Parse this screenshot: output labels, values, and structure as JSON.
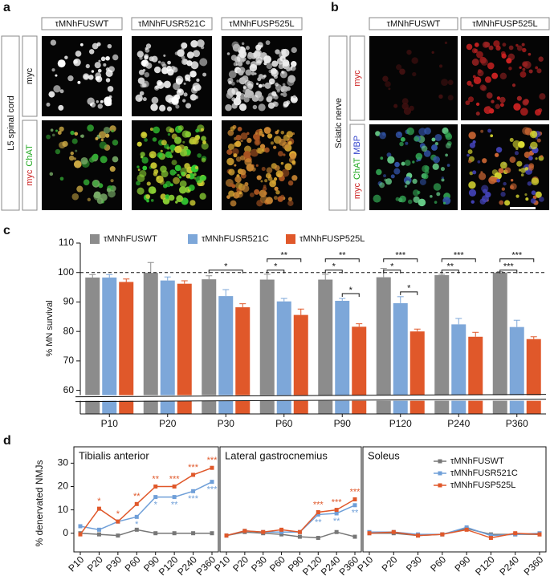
{
  "panel_labels": [
    "a",
    "b",
    "c",
    "d"
  ],
  "panel_a": {
    "columns": [
      "τMNhFUSWT",
      "τMNhFUSR521C",
      "τMNhFUSP525L"
    ],
    "row_title": "L5 spinal cord",
    "rows": [
      [
        {
          "text": "myc",
          "color": "#111111"
        }
      ],
      [
        {
          "text": "myc",
          "color": "#cc2222"
        },
        {
          "text": "ChAT",
          "color": "#22aa22"
        }
      ]
    ]
  },
  "panel_b": {
    "columns": [
      "τMNhFUSWT",
      "τMNhFUSP525L"
    ],
    "row_title": "Sciatic nerve",
    "rows": [
      [
        {
          "text": "myc",
          "color": "#cc2222"
        }
      ],
      [
        {
          "text": "myc",
          "color": "#cc2222"
        },
        {
          "text": "ChAT",
          "color": "#22aa22"
        },
        {
          "text": "MBP",
          "color": "#3344cc"
        }
      ]
    ]
  },
  "chart_data": [
    {
      "type": "bar",
      "ylabel": "% MN survival",
      "categories": [
        "P10",
        "P20",
        "P30",
        "P60",
        "P90",
        "P120",
        "P240",
        "P360"
      ],
      "series": [
        {
          "name": "τMNhFUSWT",
          "color": "#8c8c8c",
          "values": [
            98.3,
            99.9,
            97.7,
            97.6,
            97.6,
            98.4,
            99.1,
            100.0
          ],
          "errors": [
            1.0,
            3.5,
            1.2,
            1.8,
            1.8,
            3.0,
            0.3,
            0.3
          ]
        },
        {
          "name": "τMNhFUSR521C",
          "color": "#7da7d9",
          "values": [
            98.3,
            97.3,
            92.0,
            90.2,
            90.4,
            89.6,
            82.4,
            81.5
          ],
          "errors": [
            1.0,
            1.2,
            2.2,
            1.0,
            0.8,
            2.2,
            2.0,
            2.3
          ]
        },
        {
          "name": "τMNhFUSP525L",
          "color": "#e0582a",
          "values": [
            96.8,
            96.2,
            88.2,
            85.6,
            81.6,
            80.0,
            78.2,
            77.4
          ],
          "errors": [
            1.0,
            1.0,
            1.2,
            2.0,
            1.0,
            0.8,
            1.5,
            0.8
          ]
        }
      ],
      "ylim": [
        52,
        110
      ],
      "yticks": [
        60,
        70,
        80,
        90,
        100,
        110
      ],
      "reference_line": 100,
      "axis_break": true,
      "significance": [
        {
          "text": "*",
          "category": 2,
          "series": [
            0,
            2
          ]
        },
        {
          "text": "*",
          "category": 3,
          "series": [
            0,
            1
          ]
        },
        {
          "text": "**",
          "category": 3,
          "series": [
            0,
            2
          ]
        },
        {
          "text": "*",
          "category": 4,
          "series": [
            0,
            1
          ]
        },
        {
          "text": "**",
          "category": 4,
          "series": [
            0,
            2
          ]
        },
        {
          "text": "*",
          "category": 4,
          "series": [
            1,
            2
          ]
        },
        {
          "text": "*",
          "category": 5,
          "series": [
            0,
            1
          ]
        },
        {
          "text": "***",
          "category": 5,
          "series": [
            0,
            2
          ]
        },
        {
          "text": "*",
          "category": 5,
          "series": [
            1,
            2
          ]
        },
        {
          "text": "**",
          "category": 6,
          "series": [
            0,
            1
          ]
        },
        {
          "text": "***",
          "category": 6,
          "series": [
            0,
            2
          ]
        },
        {
          "text": "***",
          "category": 7,
          "series": [
            0,
            1
          ]
        },
        {
          "text": "***",
          "category": 7,
          "series": [
            0,
            2
          ]
        }
      ]
    },
    {
      "type": "line",
      "title": "Tibialis anterior",
      "ylabel": "% denervated NMJs",
      "categories": [
        "P10",
        "P20",
        "P30",
        "P60",
        "P90",
        "P120",
        "P240",
        "P360"
      ],
      "series": [
        {
          "color": "#777777",
          "values": [
            0,
            -0.5,
            -1,
            1.5,
            0,
            0,
            0,
            0
          ]
        },
        {
          "color": "#6f9fd8",
          "values": [
            3,
            1.5,
            5,
            7,
            15.5,
            15.5,
            18,
            22
          ]
        },
        {
          "color": "#e0582a",
          "values": [
            -0.5,
            10.5,
            5,
            12.5,
            20,
            20,
            25,
            28
          ]
        }
      ],
      "ylim": [
        -8,
        37
      ],
      "yticks": [
        0,
        10,
        20,
        30
      ],
      "annotations": [
        {
          "text": "*",
          "category": 1,
          "series": 2,
          "position": "above"
        },
        {
          "text": "*",
          "category": 2,
          "series": 2,
          "position": "above"
        },
        {
          "text": "**",
          "category": 3,
          "series": 2,
          "position": "above"
        },
        {
          "text": "**",
          "category": 4,
          "series": 2,
          "position": "above"
        },
        {
          "text": "***",
          "category": 5,
          "series": 2,
          "position": "above"
        },
        {
          "text": "***",
          "category": 6,
          "series": 2,
          "position": "above"
        },
        {
          "text": "***",
          "category": 7,
          "series": 2,
          "position": "above"
        },
        {
          "text": "*",
          "category": 3,
          "series": 1,
          "position": "below"
        },
        {
          "text": "*",
          "category": 4,
          "series": 1,
          "position": "below"
        },
        {
          "text": "**",
          "category": 5,
          "series": 1,
          "position": "below"
        },
        {
          "text": "***",
          "category": 6,
          "series": 1,
          "position": "below"
        },
        {
          "text": "***",
          "category": 7,
          "series": 1,
          "position": "below"
        }
      ]
    },
    {
      "type": "line",
      "title": "Lateral gastrocnemius",
      "categories": [
        "P10",
        "P20",
        "P30",
        "P60",
        "P90",
        "P120",
        "P240",
        "P360"
      ],
      "series": [
        {
          "color": "#777777",
          "values": [
            -1,
            0.5,
            0,
            -0.5,
            -1.5,
            -2,
            0.5,
            -1.5
          ]
        },
        {
          "color": "#6f9fd8",
          "values": [
            -1,
            1,
            0.5,
            0.5,
            0.5,
            8,
            8.5,
            12
          ]
        },
        {
          "color": "#e0582a",
          "values": [
            -1,
            1,
            0.5,
            1.5,
            0.5,
            9,
            10,
            14.5
          ]
        }
      ],
      "ylim": [
        -8,
        37
      ],
      "annotations": [
        {
          "text": "***",
          "category": 5,
          "series": 2,
          "position": "above"
        },
        {
          "text": "***",
          "category": 6,
          "series": 2,
          "position": "above"
        },
        {
          "text": "***",
          "category": 7,
          "series": 2,
          "position": "above"
        },
        {
          "text": "**",
          "category": 5,
          "series": 1,
          "position": "below"
        },
        {
          "text": "**",
          "category": 6,
          "series": 1,
          "position": "below"
        },
        {
          "text": "**",
          "category": 7,
          "series": 1,
          "position": "below"
        }
      ]
    },
    {
      "type": "line",
      "title": "Soleus",
      "categories": [
        "P10",
        "P20",
        "P30",
        "P60",
        "P90",
        "P120",
        "P240",
        "P360"
      ],
      "series": [
        {
          "name": "τMNhFUSWT",
          "color": "#777777",
          "values": [
            0,
            0,
            -1,
            -0.5,
            2,
            -0.5,
            -0.5,
            -0.5
          ]
        },
        {
          "name": "τMNhFUSR521C",
          "color": "#6f9fd8",
          "values": [
            0.5,
            0.5,
            -0.5,
            -0.5,
            2.5,
            -1,
            -0.5,
            0
          ]
        },
        {
          "name": "τMNhFUSP525L",
          "color": "#e0582a",
          "values": [
            0,
            0.5,
            -1,
            -0.5,
            1.5,
            -2,
            0,
            -0.5
          ]
        }
      ],
      "ylim": [
        -8,
        37
      ],
      "legend": "top-right"
    }
  ]
}
